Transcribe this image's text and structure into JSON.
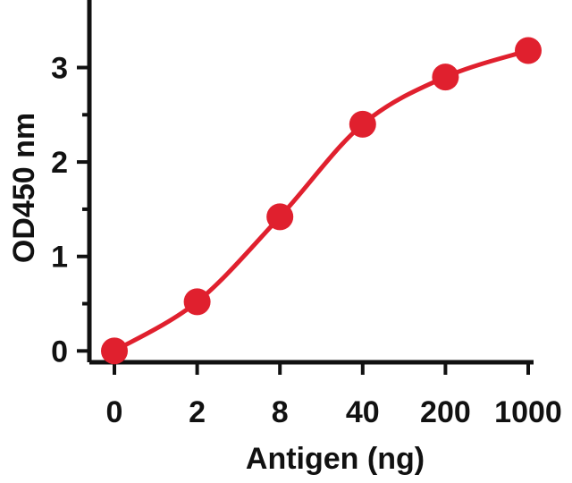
{
  "chart_data": {
    "type": "line",
    "title": "",
    "xlabel": "Antigen (ng)",
    "ylabel": "OD450 nm",
    "categories": [
      "0",
      "2",
      "8",
      "40",
      "200",
      "1000"
    ],
    "series": [
      {
        "values": [
          0.0,
          0.52,
          1.42,
          2.4,
          2.9,
          3.18
        ],
        "color": "#e0202e"
      }
    ],
    "ylim": [
      -0.12,
      3.45
    ],
    "yticks": [
      0,
      1,
      2,
      3
    ],
    "grid": false,
    "legend": "none",
    "axis_color": "#111111"
  }
}
